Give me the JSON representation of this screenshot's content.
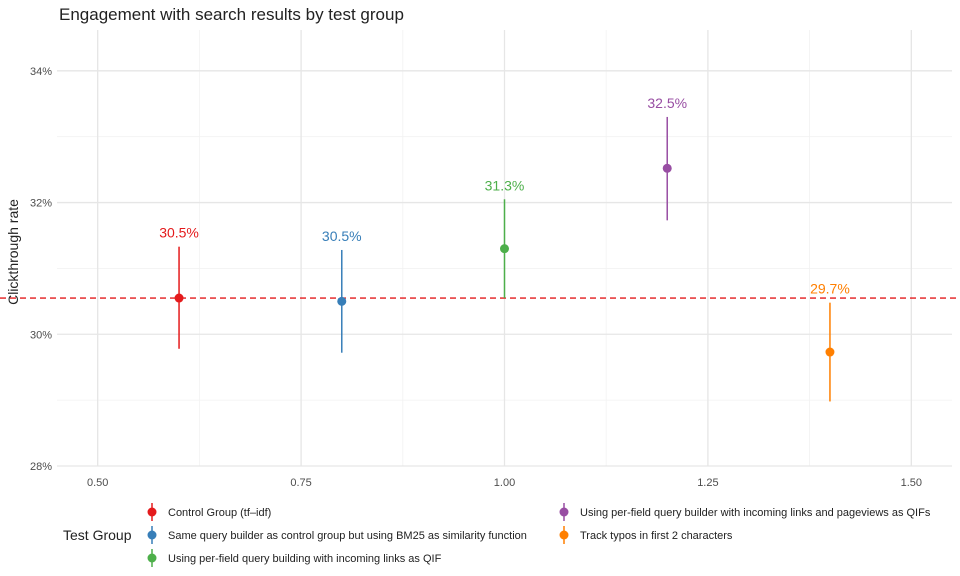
{
  "chart_data": {
    "type": "scatter",
    "title": "Engagement with search results by test group",
    "xlabel": "",
    "ylabel": "Clickthrough rate",
    "xlim": [
      0.45,
      1.55
    ],
    "ylim": [
      0.28,
      0.3462
    ],
    "x_ticks": [
      0.5,
      0.75,
      1.0,
      1.25,
      1.5
    ],
    "x_tick_labels": [
      "0.50",
      "0.75",
      "1.00",
      "1.25",
      "1.50"
    ],
    "y_ticks": [
      0.28,
      0.3,
      0.32,
      0.34
    ],
    "y_tick_labels": [
      "28%",
      "30%",
      "32%",
      "34%"
    ],
    "grid": true,
    "reference_line": {
      "y": 0.3055,
      "color": "#e41a1c",
      "style": "dashed"
    },
    "legend": {
      "title": "Test Group",
      "position": "bottom"
    },
    "series": [
      {
        "name": "Control Group (tf–idf)",
        "x": 0.6,
        "y": 0.3055,
        "lower": 0.2978,
        "upper": 0.3133,
        "label": "30.5%",
        "color": "#e41a1c"
      },
      {
        "name": "Same query builder as control group but using BM25 as similarity function",
        "x": 0.8,
        "y": 0.305,
        "lower": 0.2972,
        "upper": 0.3128,
        "label": "30.5%",
        "color": "#377eb8"
      },
      {
        "name": "Using per-field query building with incoming links as QIF",
        "x": 1.0,
        "y": 0.313,
        "lower": 0.3055,
        "upper": 0.3205,
        "label": "31.3%",
        "color": "#4daf4a"
      },
      {
        "name": "Using per-field query builder with incoming links and pageviews as QIFs",
        "x": 1.2,
        "y": 0.3252,
        "lower": 0.3173,
        "upper": 0.333,
        "label": "32.5%",
        "color": "#984ea3"
      },
      {
        "name": "Track typos in first 2 characters",
        "x": 1.4,
        "y": 0.2973,
        "lower": 0.2898,
        "upper": 0.3048,
        "label": "29.7%",
        "color": "#ff7f00"
      }
    ]
  }
}
